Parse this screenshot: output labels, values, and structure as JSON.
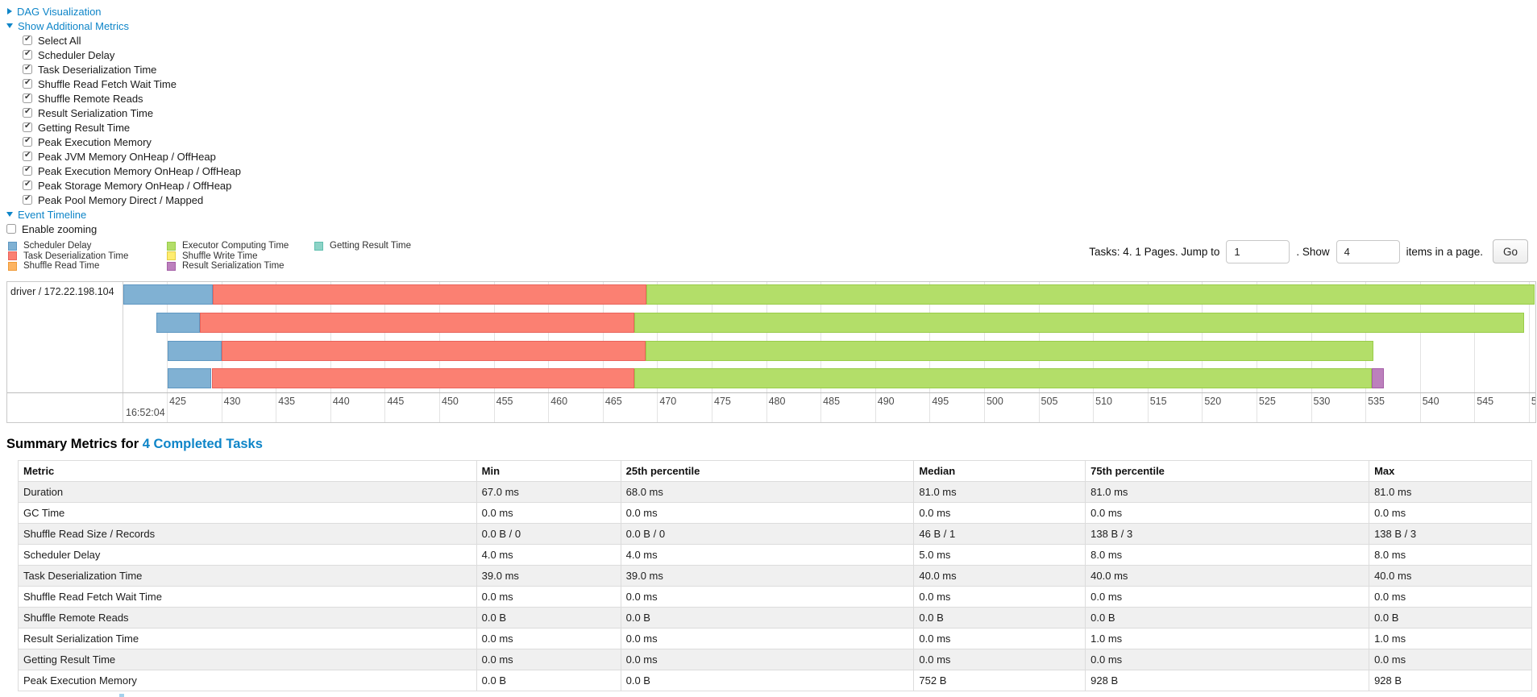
{
  "colors": {
    "link": "#0e85c8",
    "grid": "#e3e3e3",
    "axis_line": "#bdbdbd",
    "box_border": "#c9c9c9",
    "table_border": "#dcdcdc",
    "row_stripe": "#f0f0f0"
  },
  "toggles": {
    "dag": {
      "label": "DAG Visualization",
      "expanded": false
    },
    "additional_metrics": {
      "label": "Show Additional Metrics",
      "expanded": true
    },
    "event_timeline": {
      "label": "Event Timeline",
      "expanded": true
    }
  },
  "metric_checkboxes": {
    "items": [
      "Select All",
      "Scheduler Delay",
      "Task Deserialization Time",
      "Shuffle Read Fetch Wait Time",
      "Shuffle Remote Reads",
      "Result Serialization Time",
      "Getting Result Time",
      "Peak Execution Memory",
      "Peak JVM Memory OnHeap / OffHeap",
      "Peak Execution Memory OnHeap / OffHeap",
      "Peak Storage Memory OnHeap / OffHeap",
      "Peak Pool Memory Direct / Mapped"
    ],
    "checked": [
      true,
      true,
      true,
      true,
      true,
      true,
      true,
      true,
      true,
      true,
      true,
      true
    ]
  },
  "enable_zooming": {
    "label": "Enable zooming",
    "checked": false
  },
  "legend": {
    "columns": [
      [
        {
          "label": "Scheduler Delay",
          "metric": "scheduler_delay"
        },
        {
          "label": "Task Deserialization Time",
          "metric": "task_deserialization"
        },
        {
          "label": "Shuffle Read Time",
          "metric": "shuffle_read"
        }
      ],
      [
        {
          "label": "Executor Computing Time",
          "metric": "executor_computing"
        },
        {
          "label": "Shuffle Write Time",
          "metric": "shuffle_write"
        },
        {
          "label": "Result Serialization Time",
          "metric": "result_serialization"
        }
      ],
      [
        {
          "label": "Getting Result Time",
          "metric": "getting_result"
        }
      ]
    ]
  },
  "pagination": {
    "tasks_text": "Tasks: 4. 1 Pages. Jump to",
    "jump_value": "1",
    "mid_text": ". Show",
    "show_value": "4",
    "suffix_text": "items in a page.",
    "go_label": "Go"
  },
  "chart_data": {
    "type": "timeline",
    "title": "Event Timeline",
    "executor_label": "driver / 172.22.198.104",
    "axis": {
      "unit": "ms within second",
      "min": 421.0,
      "max": 550.6,
      "tick_start": 425,
      "tick_end": 550,
      "tick_step": 5,
      "major_label": "16:52:04",
      "grid": true
    },
    "series_colors": {
      "scheduler_delay": {
        "fill": "#80B1D3",
        "border": "#5E97C2"
      },
      "task_deserialization": {
        "fill": "#FB8072",
        "border": "#E9635B"
      },
      "shuffle_read": {
        "fill": "#FDB462",
        "border": "#EF9A38"
      },
      "executor_computing": {
        "fill": "#B3DE69",
        "border": "#99CC49"
      },
      "shuffle_write": {
        "fill": "#FFED6F",
        "border": "#E3CE44"
      },
      "result_serialization": {
        "fill": "#BC80BD",
        "border": "#A55FA7"
      },
      "getting_result": {
        "fill": "#8DD3C7",
        "border": "#5FBFAE"
      }
    },
    "tasks": [
      {
        "start": 421.0,
        "segments": [
          {
            "metric": "scheduler_delay",
            "ms": 8.2
          },
          {
            "metric": "task_deserialization",
            "ms": 39.8
          },
          {
            "metric": "executor_computing",
            "ms": 81.5
          }
        ]
      },
      {
        "start": 424.0,
        "segments": [
          {
            "metric": "scheduler_delay",
            "ms": 4.0
          },
          {
            "metric": "task_deserialization",
            "ms": 39.9
          },
          {
            "metric": "executor_computing",
            "ms": 81.7
          }
        ]
      },
      {
        "start": 425.1,
        "segments": [
          {
            "metric": "scheduler_delay",
            "ms": 4.9
          },
          {
            "metric": "task_deserialization",
            "ms": 38.9
          },
          {
            "metric": "executor_computing",
            "ms": 66.8
          }
        ]
      },
      {
        "start": 425.1,
        "segments": [
          {
            "metric": "scheduler_delay",
            "ms": 4.0
          },
          {
            "metric": "task_deserialization",
            "ms": 38.8
          },
          {
            "metric": "executor_computing",
            "ms": 67.7
          },
          {
            "metric": "result_serialization",
            "ms": 1.1
          }
        ]
      }
    ]
  },
  "summary": {
    "title_prefix": "Summary Metrics for",
    "title_link": "4 Completed Tasks",
    "headers": [
      "Metric",
      "Min",
      "25th percentile",
      "Median",
      "75th percentile",
      "Max"
    ],
    "rows": [
      [
        "Duration",
        "67.0 ms",
        "68.0 ms",
        "81.0 ms",
        "81.0 ms",
        "81.0 ms"
      ],
      [
        "GC Time",
        "0.0 ms",
        "0.0 ms",
        "0.0 ms",
        "0.0 ms",
        "0.0 ms"
      ],
      [
        "Shuffle Read Size / Records",
        "0.0 B / 0",
        "0.0 B / 0",
        "46 B / 1",
        "138 B / 3",
        "138 B / 3"
      ],
      [
        "Scheduler Delay",
        "4.0 ms",
        "4.0 ms",
        "5.0 ms",
        "8.0 ms",
        "8.0 ms"
      ],
      [
        "Task Deserialization Time",
        "39.0 ms",
        "39.0 ms",
        "40.0 ms",
        "40.0 ms",
        "40.0 ms"
      ],
      [
        "Shuffle Read Fetch Wait Time",
        "0.0 ms",
        "0.0 ms",
        "0.0 ms",
        "0.0 ms",
        "0.0 ms"
      ],
      [
        "Shuffle Remote Reads",
        "0.0 B",
        "0.0 B",
        "0.0 B",
        "0.0 B",
        "0.0 B"
      ],
      [
        "Result Serialization Time",
        "0.0 ms",
        "0.0 ms",
        "0.0 ms",
        "1.0 ms",
        "1.0 ms"
      ],
      [
        "Getting Result Time",
        "0.0 ms",
        "0.0 ms",
        "0.0 ms",
        "0.0 ms",
        "0.0 ms"
      ],
      [
        "Peak Execution Memory",
        "0.0 B",
        "0.0 B",
        "752 B",
        "928 B",
        "928 B"
      ]
    ]
  }
}
